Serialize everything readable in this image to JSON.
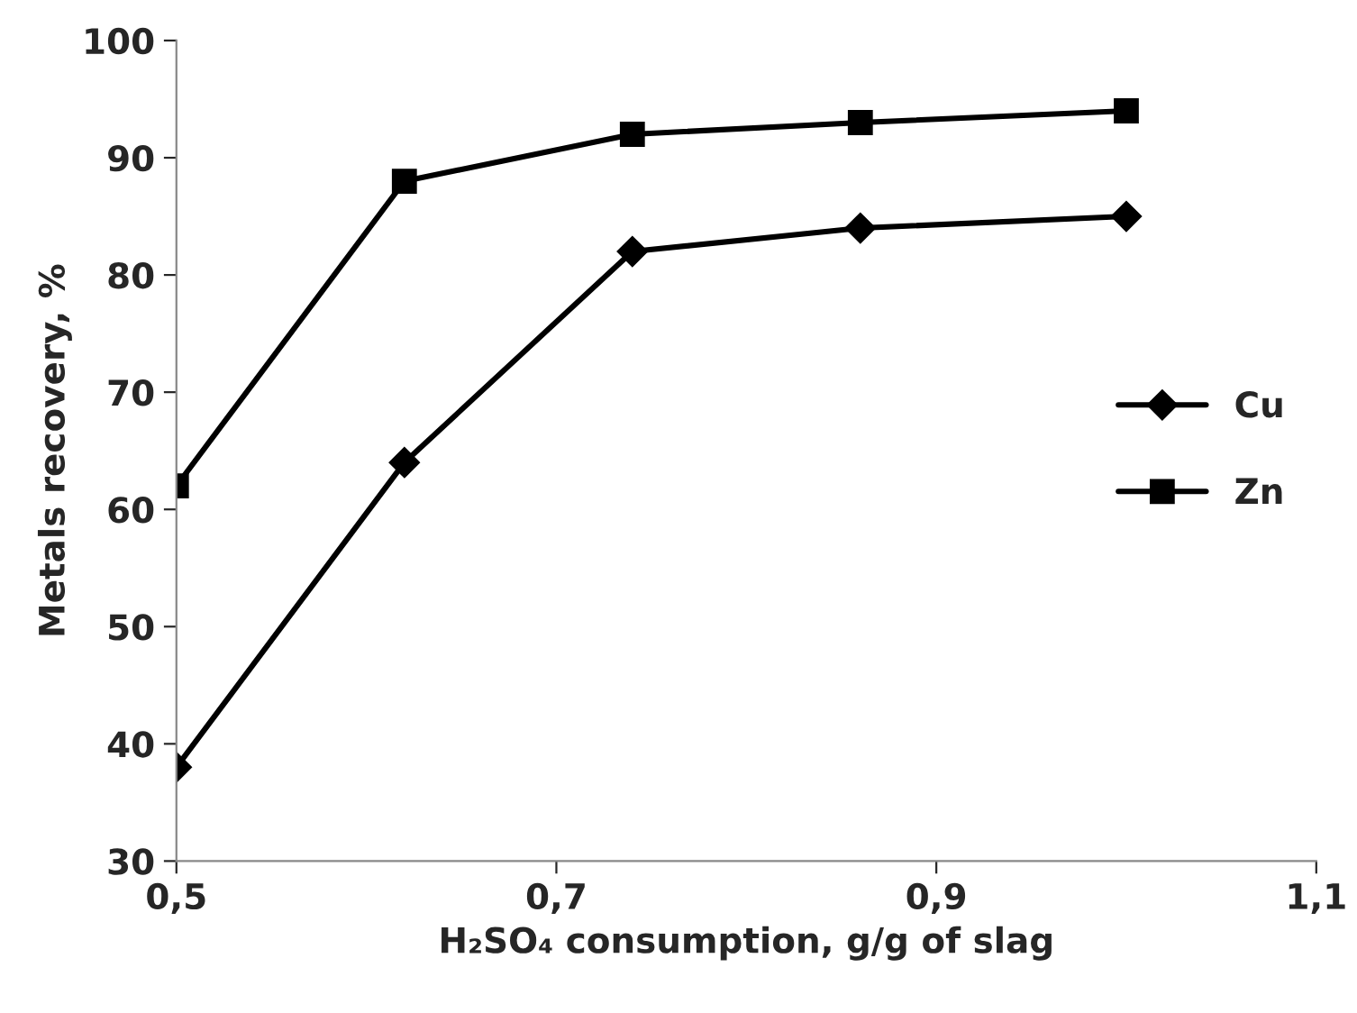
{
  "chart_data": {
    "type": "line",
    "xlabel": "H₂SO₄ consumption, g/g of slag",
    "ylabel": "Metals recovery, %",
    "x": [
      0.5,
      0.62,
      0.74,
      0.86,
      1.0
    ],
    "series": [
      {
        "name": "Cu",
        "color": "#000000",
        "marker": "diamond",
        "values": [
          38,
          64,
          82,
          84,
          85
        ]
      },
      {
        "name": "Zn",
        "color": "#000000",
        "marker": "square",
        "values": [
          62,
          88,
          92,
          93,
          94
        ]
      }
    ],
    "xlim": [
      0.5,
      1.1
    ],
    "xticks": [
      {
        "value": 0.5,
        "label": "0,5"
      },
      {
        "value": 0.7,
        "label": "0,7"
      },
      {
        "value": 0.9,
        "label": "0,9"
      },
      {
        "value": 1.1,
        "label": "1,1"
      }
    ],
    "ylim": [
      30,
      100
    ],
    "yticks": [
      30,
      40,
      50,
      60,
      70,
      80,
      90,
      100
    ],
    "grid": false,
    "legend": "right",
    "line_style": "solid"
  }
}
